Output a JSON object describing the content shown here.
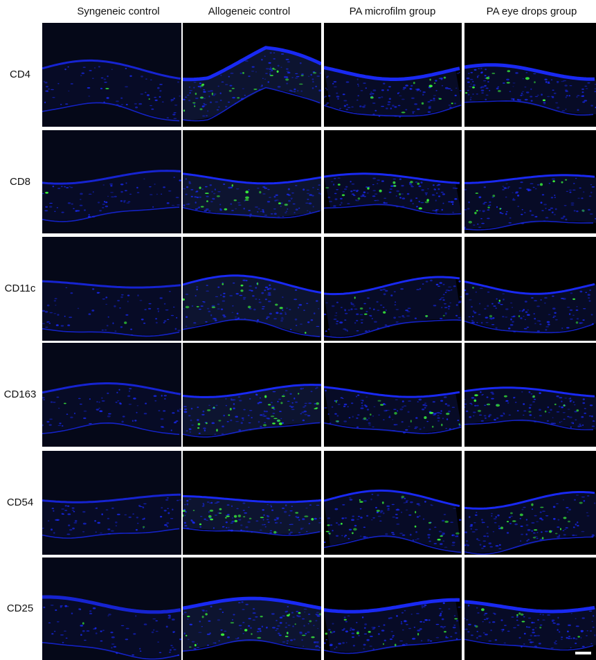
{
  "figure": {
    "columns": [
      {
        "label": "Syngeneic control"
      },
      {
        "label": "Allogeneic control"
      },
      {
        "label": "PA microfilm group"
      },
      {
        "label": "PA eye drops group"
      }
    ],
    "rows": [
      {
        "label": "CD4"
      },
      {
        "label": "CD8"
      },
      {
        "label": "CD11c"
      },
      {
        "label": "CD163"
      },
      {
        "label": "CD54"
      },
      {
        "label": "CD25"
      }
    ],
    "stain_colors": {
      "nuclei": "#1a2bff",
      "marker": "#3cff3c",
      "background": "#000000"
    },
    "green_signal_level": [
      [
        0.05,
        0.55,
        0.25,
        0.25
      ],
      [
        0.02,
        0.35,
        0.35,
        0.3
      ],
      [
        0.02,
        0.3,
        0.15,
        0.15
      ],
      [
        0.02,
        0.6,
        0.35,
        0.3
      ],
      [
        0.02,
        0.55,
        0.45,
        0.4
      ],
      [
        0.02,
        0.55,
        0.25,
        0.2
      ]
    ],
    "has_scale_bar": true
  }
}
